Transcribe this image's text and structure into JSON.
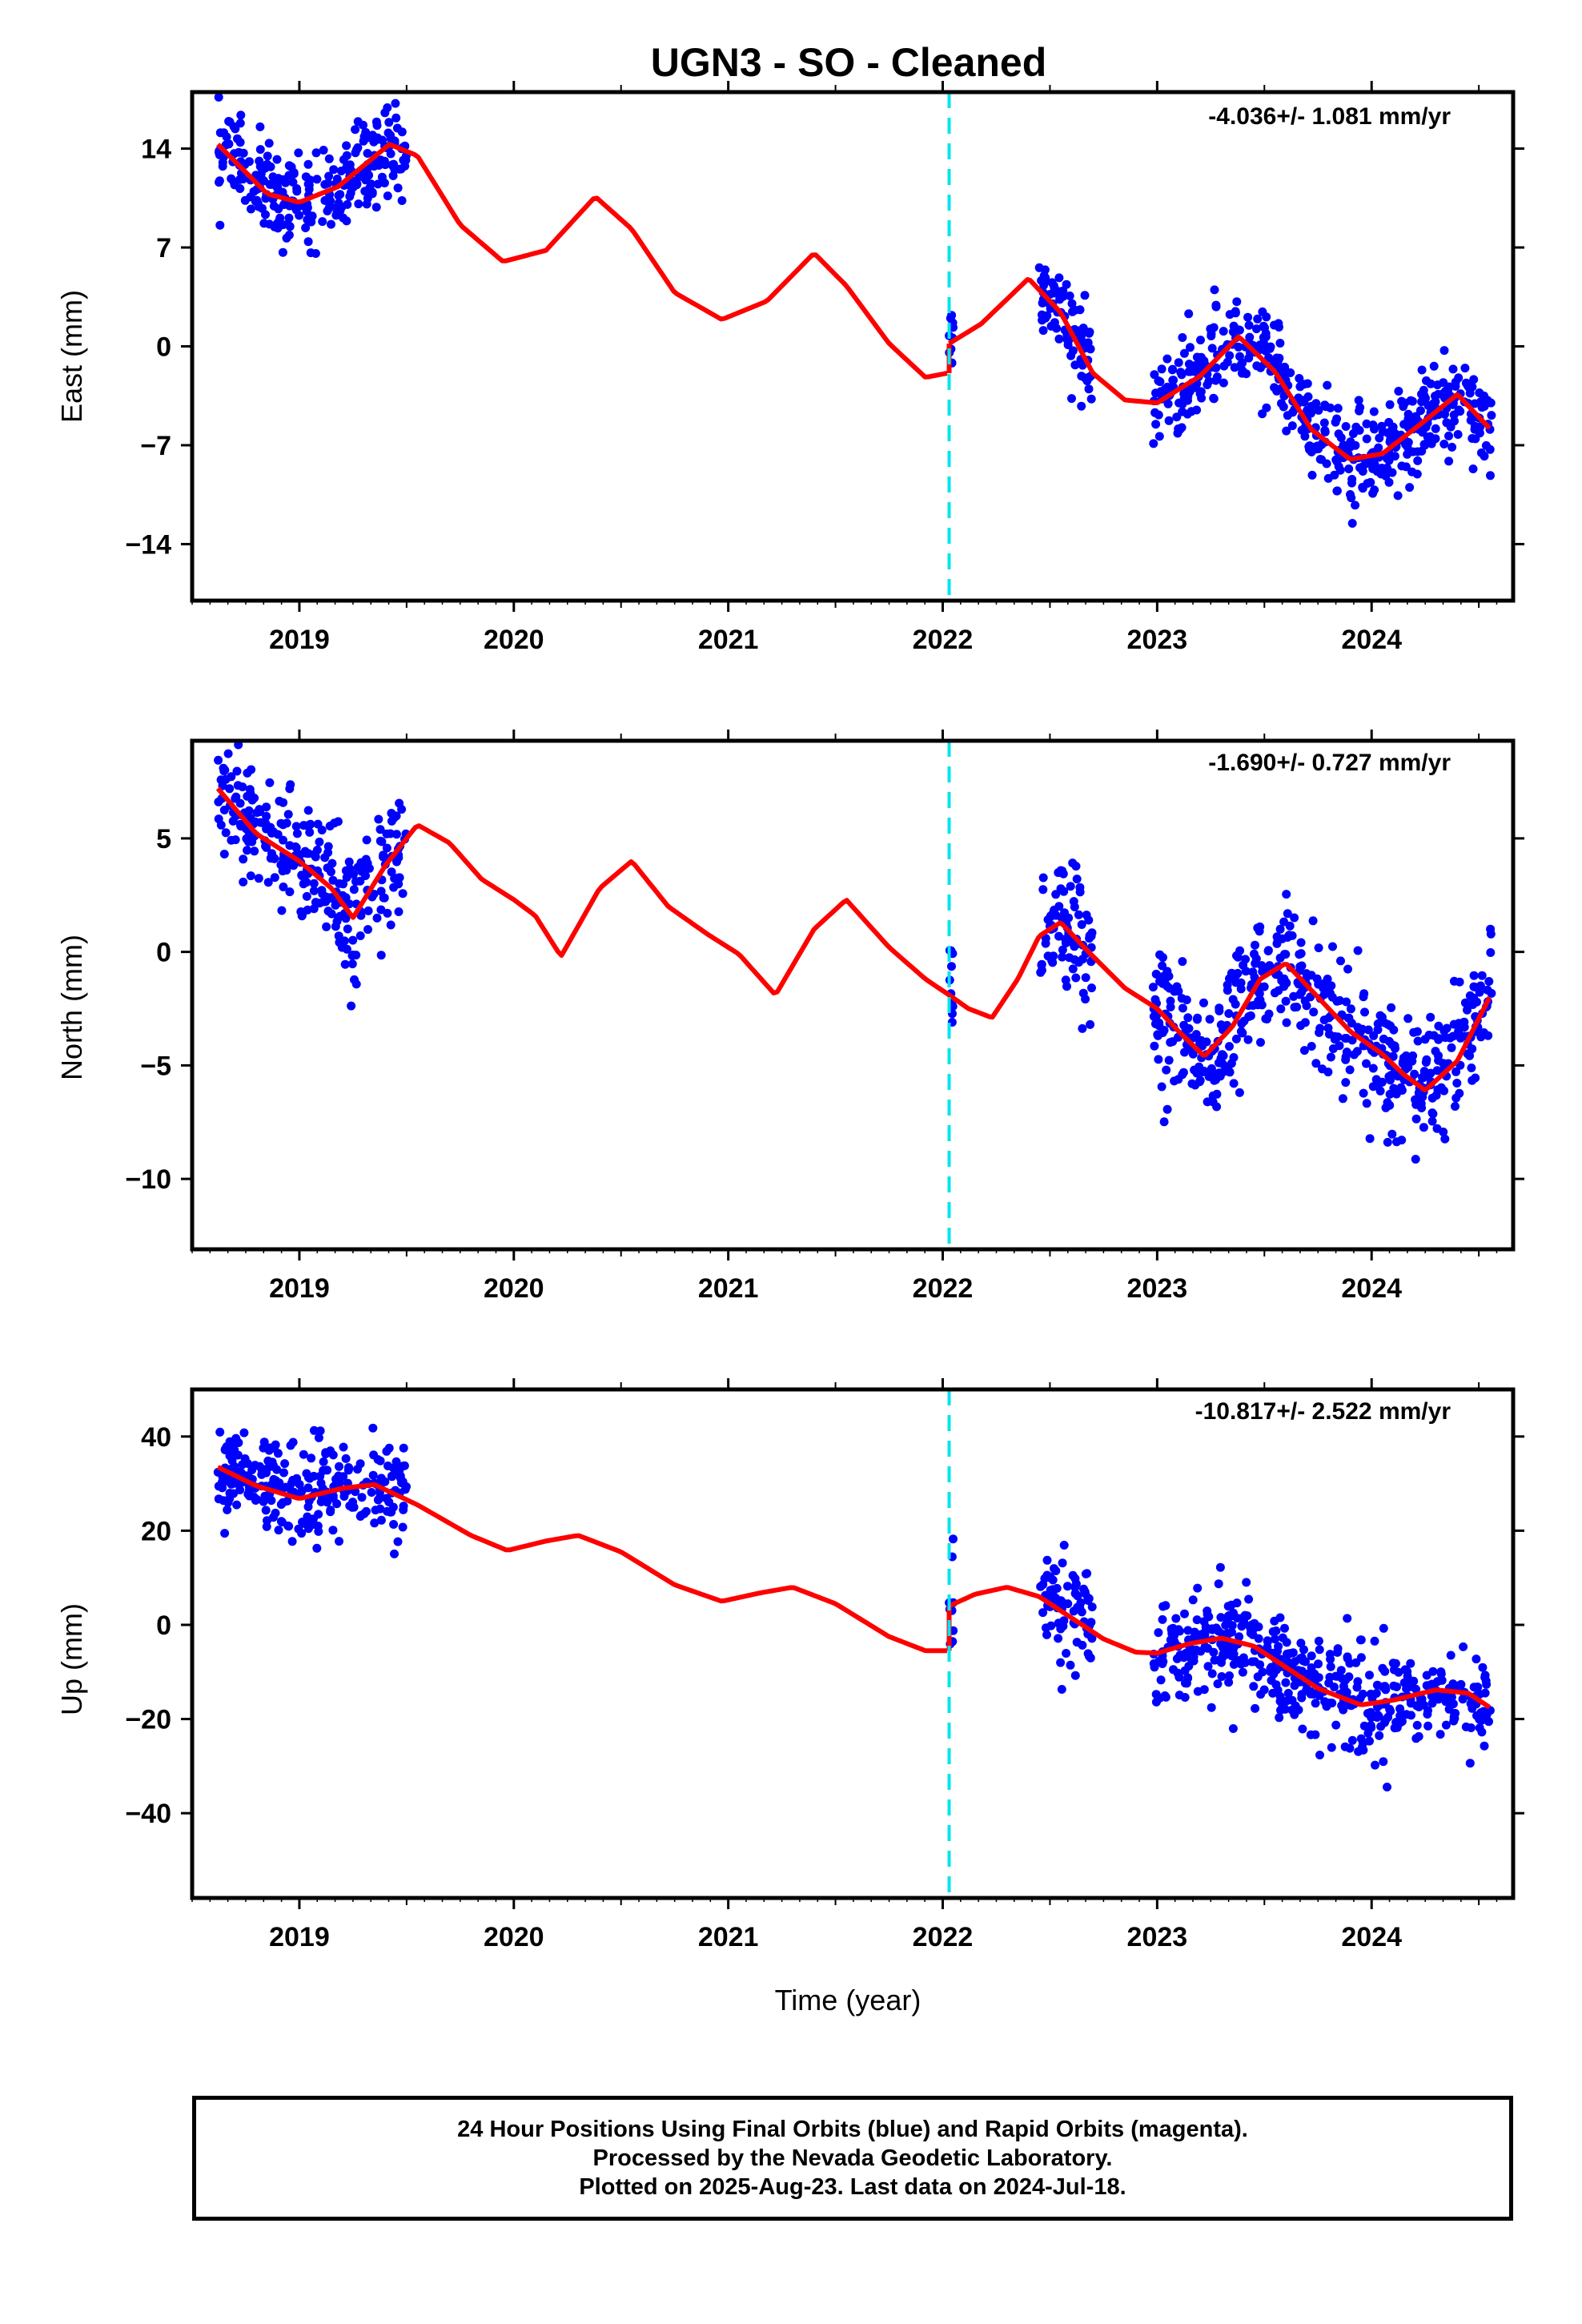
{
  "title": "UGN3  - SO - Cleaned",
  "xlabel": "Time (year)",
  "footer": {
    "line1": "24 Hour Positions Using Final Orbits (blue) and Rapid Orbits (magenta).",
    "line2": "Processed by the Nevada Geodetic Laboratory.",
    "line3": "Plotted on 2025-Aug-23. Last data on 2024-Jul-18."
  },
  "colors": {
    "points": "#0000ff",
    "model": "#ff0000",
    "offset_line": "#00e5ee",
    "frame": "#000000"
  },
  "chart_data": [
    {
      "type": "scatter",
      "component": "East",
      "ylabel": "East (mm)",
      "rate": "-4.036+/- 1.081 mm/yr",
      "xlim": [
        2018.5,
        2024.66
      ],
      "ylim": [
        -18,
        18
      ],
      "yticks": [
        14,
        7,
        0,
        -7,
        -14
      ],
      "xticks": [
        2019,
        2020,
        2021,
        2022,
        2023,
        2024
      ],
      "offset_epoch": 2022.03,
      "trend_segments": [
        {
          "x": [
            2018.62,
            2018.85,
            2019.0,
            2019.18,
            2019.42,
            2019.55,
            2019.75,
            2019.95,
            2020.15,
            2020.38,
            2020.55,
            2020.75,
            2020.97,
            2021.18,
            2021.4,
            2021.55,
            2021.75,
            2021.92,
            2022.02
          ],
          "y": [
            14.3,
            10.8,
            10.2,
            11.3,
            14.3,
            13.5,
            8.6,
            6.0,
            6.8,
            10.6,
            8.3,
            3.8,
            1.9,
            3.2,
            6.6,
            4.3,
            0.2,
            -2.2,
            -1.9
          ]
        },
        {
          "x": [
            2022.03,
            2022.18,
            2022.4,
            2022.55,
            2022.7,
            2022.85,
            2023.0,
            2023.2,
            2023.38,
            2023.55,
            2023.72,
            2023.9,
            2024.05,
            2024.22,
            2024.4,
            2024.55
          ],
          "y": [
            0.2,
            1.6,
            4.8,
            2.4,
            -1.9,
            -3.8,
            -4.0,
            -2.1,
            0.7,
            -1.8,
            -5.9,
            -8.0,
            -7.6,
            -5.6,
            -3.4,
            -5.8
          ]
        }
      ]
    },
    {
      "type": "scatter",
      "component": "North",
      "ylabel": "North (mm)",
      "rate": "-1.690+/- 0.727 mm/yr",
      "xlim": [
        2018.5,
        2024.66
      ],
      "ylim": [
        -13.1,
        9.3
      ],
      "yticks": [
        5,
        0,
        -5,
        -10
      ],
      "xticks": [
        2019,
        2020,
        2021,
        2022,
        2023,
        2024
      ],
      "offset_epoch": 2022.03,
      "trend_segments": [
        {
          "x": [
            2018.62,
            2018.8,
            2019.0,
            2019.15,
            2019.25,
            2019.4,
            2019.55,
            2019.7,
            2019.85,
            2020.0,
            2020.1,
            2020.22,
            2020.4,
            2020.55,
            2020.72,
            2020.9,
            2021.05,
            2021.22,
            2021.4,
            2021.55,
            2021.75,
            2021.92,
            2022.03
          ],
          "y": [
            7.2,
            5.2,
            4.0,
            2.8,
            1.5,
            3.8,
            5.6,
            4.8,
            3.2,
            2.3,
            1.6,
            -0.2,
            2.8,
            4.0,
            2.0,
            0.8,
            -0.1,
            -1.9,
            1.0,
            2.3,
            0.2,
            -1.2,
            -1.9
          ]
        },
        {
          "x": [
            2022.03,
            2022.12,
            2022.23,
            2022.35,
            2022.45,
            2022.55,
            2022.68,
            2022.85,
            2023.0,
            2023.1,
            2023.22,
            2023.35,
            2023.48,
            2023.6,
            2023.75,
            2023.9,
            2024.05,
            2024.15,
            2024.25,
            2024.4,
            2024.55
          ],
          "y": [
            -1.9,
            -2.5,
            -2.9,
            -1.2,
            0.7,
            1.3,
            0.0,
            -1.6,
            -2.5,
            -3.5,
            -4.6,
            -3.3,
            -1.2,
            -0.5,
            -2.0,
            -3.5,
            -4.5,
            -5.4,
            -6.1,
            -4.8,
            -2.0
          ]
        }
      ]
    },
    {
      "type": "scatter",
      "component": "Up",
      "ylabel": "Up (mm)",
      "rate": "-10.817+/- 2.522 mm/yr",
      "xlim": [
        2018.5,
        2024.66
      ],
      "ylim": [
        -58,
        50
      ],
      "yticks": [
        40,
        20,
        0,
        -20,
        -40
      ],
      "xticks": [
        2019,
        2020,
        2021,
        2022,
        2023,
        2024
      ],
      "offset_epoch": 2022.03,
      "trend_segments": [
        {
          "x": [
            2018.62,
            2018.8,
            2019.0,
            2019.2,
            2019.35,
            2019.55,
            2019.8,
            2019.97,
            2020.15,
            2020.3,
            2020.5,
            2020.75,
            2020.97,
            2021.15,
            2021.3,
            2021.5,
            2021.75,
            2021.92,
            2022.02
          ],
          "y": [
            33.5,
            29.5,
            26.8,
            29.0,
            29.8,
            25.5,
            19.0,
            15.8,
            17.8,
            19.0,
            15.5,
            8.5,
            5.0,
            6.8,
            8.0,
            4.5,
            -2.5,
            -5.5,
            -5.5
          ]
        },
        {
          "x": [
            2022.03,
            2022.15,
            2022.3,
            2022.45,
            2022.6,
            2022.75,
            2022.9,
            2023.0,
            2023.15,
            2023.3,
            2023.45,
            2023.6,
            2023.75,
            2023.95,
            2024.1,
            2024.3,
            2024.45,
            2024.55
          ],
          "y": [
            4.0,
            6.5,
            8.0,
            6.0,
            1.5,
            -3.0,
            -5.8,
            -6.0,
            -4.0,
            -2.8,
            -4.5,
            -9.0,
            -13.5,
            -17.0,
            -16.0,
            -13.8,
            -14.5,
            -17.5
          ]
        }
      ]
    }
  ]
}
